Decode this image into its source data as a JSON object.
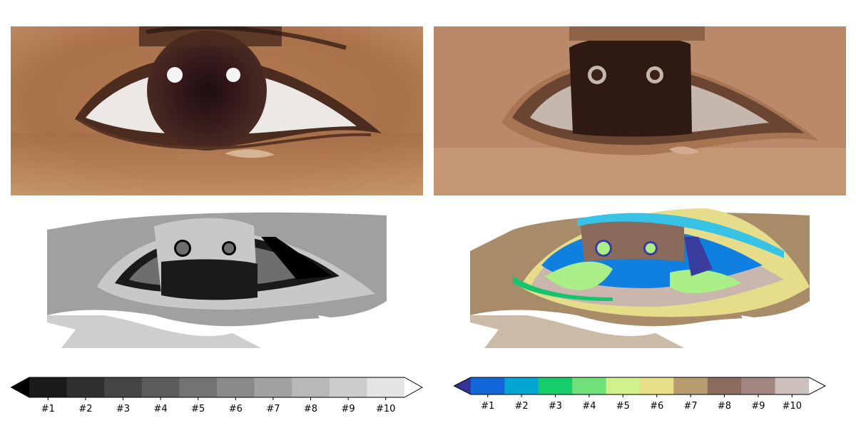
{
  "chart_data": [
    {
      "type": "image",
      "panel": "original-photo",
      "colors": [
        "#a66e46",
        "#c08a62",
        "#3e201c",
        "#f2f2f2",
        "#8a5a3a"
      ]
    },
    {
      "type": "image",
      "panel": "quantized-photo",
      "colors": [
        "#b9896a",
        "#a77552",
        "#8d6347",
        "#2e1a12",
        "#c6b7ad"
      ]
    },
    {
      "type": "image",
      "panel": "grayscale-label-map",
      "colors": [
        "#ffffff",
        "#a0a0a0",
        "#c8c8c8",
        "#6e6e6e",
        "#1a1a1a",
        "#000000"
      ]
    },
    {
      "type": "image",
      "panel": "colormap-label-map",
      "colors": [
        "#ffffff",
        "#a88c6a",
        "#e6dd8a",
        "#cbb6ae",
        "#0f7fe0",
        "#38c2e6",
        "#aaef88",
        "#8a6a5a",
        "#3a3d9e",
        "#16c46e"
      ]
    },
    {
      "type": "colorbar",
      "name": "gray-colorbar",
      "extend": "both",
      "tick_labels": [
        "#1",
        "#2",
        "#3",
        "#4",
        "#5",
        "#6",
        "#7",
        "#8",
        "#9",
        "#10"
      ],
      "colors": [
        "#1a1a1a",
        "#2f2f2f",
        "#454545",
        "#5c5c5c",
        "#737373",
        "#8a8a8a",
        "#a2a2a2",
        "#b8b8b8",
        "#cdcdcd",
        "#e4e4e4"
      ],
      "under_color": "#000000",
      "over_color": "#ffffff"
    },
    {
      "type": "colorbar",
      "name": "terrain-colorbar",
      "extend": "both",
      "tick_labels": [
        "#1",
        "#2",
        "#3",
        "#4",
        "#5",
        "#6",
        "#7",
        "#8",
        "#9",
        "#10"
      ],
      "colors": [
        "#1467d8",
        "#03a6d0",
        "#16cc6b",
        "#6fe07a",
        "#cff28c",
        "#e8df89",
        "#b79c70",
        "#8b6c5c",
        "#a1877f",
        "#ccc0bc"
      ],
      "under_color": "#333399",
      "over_color": "#ffffff"
    }
  ]
}
